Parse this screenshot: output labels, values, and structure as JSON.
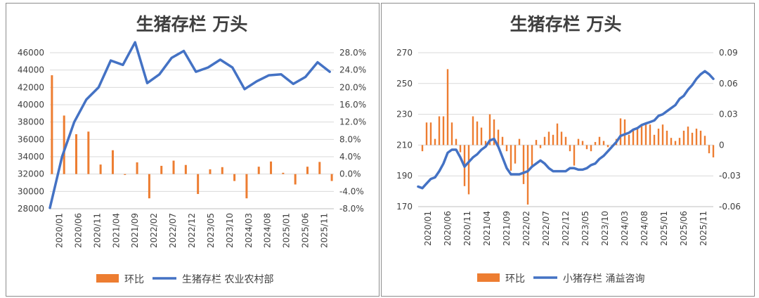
{
  "chart_data": [
    {
      "type": "bar+line",
      "title": "生猪存栏 万头",
      "y_left_ticks": [
        "46000",
        "44000",
        "42000",
        "40000",
        "38000",
        "36000",
        "34000",
        "32000",
        "30000",
        "28000"
      ],
      "y_right_ticks": [
        "28.0%",
        "24.0%",
        "20.0%",
        "16.0%",
        "12.0%",
        "8.0%",
        "4.0%",
        "0.0%",
        "-4.0%",
        "-8.0%"
      ],
      "ylim_left": [
        28000,
        46000
      ],
      "ylim_right": [
        -8,
        28
      ],
      "x_ticks": [
        "2020/01",
        "2020/06",
        "2020/11",
        "2021/04",
        "2021/09",
        "2022/02",
        "2022/07",
        "2022/12",
        "2023/05",
        "2023/10",
        "2024/03",
        "2024/08",
        "2025/01",
        "2025/06",
        "2025/11"
      ],
      "grid": true,
      "legend_position": "bottom",
      "legend": [
        "环比",
        "生猪存栏 农业农村部"
      ],
      "series": [
        {
          "name": "环比",
          "type": "bar",
          "axis": "right",
          "color": "#ED7D31",
          "x": [
            0.5,
            3.5,
            6.5,
            9.5,
            12.5,
            15.5,
            18.5,
            21.5,
            24.5,
            27.5,
            30.5,
            33.5,
            36.5,
            39.5,
            42.5,
            45.5,
            48.5,
            51.5,
            54.5,
            57.5,
            60.5,
            63.5,
            66.5,
            69.5
          ],
          "values": [
            22.8,
            13.5,
            9.2,
            9.8,
            2.2,
            5.5,
            -0.2,
            2.7,
            -5.6,
            1.9,
            3.1,
            2.1,
            -4.6,
            1.1,
            1.6,
            -1.6,
            -5.6,
            1.7,
            2.9,
            0.3,
            -2.4,
            1.7,
            2.8,
            -1.6
          ]
        },
        {
          "name": "生猪存栏 农业农村部",
          "type": "line",
          "axis": "left",
          "color": "#4472C4",
          "x": [
            0,
            3,
            6,
            9,
            12,
            15,
            18,
            21,
            24,
            27,
            30,
            33,
            36,
            39,
            42,
            45,
            48,
            51,
            54,
            57,
            60,
            63,
            66,
            69
          ],
          "values": [
            28100,
            34000,
            38000,
            40600,
            42000,
            45100,
            44600,
            47200,
            42500,
            43500,
            45400,
            46200,
            43800,
            44300,
            45200,
            44300,
            41800,
            42700,
            43400,
            43500,
            42400,
            43200,
            44900,
            43800
          ]
        }
      ]
    },
    {
      "type": "bar+line",
      "title": "生猪存栏 万头",
      "y_left_ticks": [
        "270",
        "250",
        "230",
        "210",
        "190",
        "170"
      ],
      "y_right_ticks": [
        "0.09",
        "0.06",
        "0.03",
        "0",
        "-0.03",
        "-0.06"
      ],
      "ylim_left": [
        170,
        270
      ],
      "ylim_right": [
        -0.06,
        0.09
      ],
      "x_ticks": [
        "2020/01",
        "2020/06",
        "2020/11",
        "2021/04",
        "2021/09",
        "2022/02",
        "2022/07",
        "2022/12",
        "2023/05",
        "2023/10",
        "2024/03",
        "2024/08",
        "2025/01",
        "2025/06",
        "2025/11"
      ],
      "grid": true,
      "legend_position": "bottom",
      "legend": [
        "环比",
        "小猪存栏 涌益咨询"
      ],
      "series": [
        {
          "name": "环比",
          "type": "bar",
          "axis": "right",
          "color": "#ED7D31",
          "x": [
            1,
            2,
            3,
            4,
            5,
            6,
            7,
            8,
            9,
            10,
            11,
            12,
            13,
            14,
            15,
            16,
            17,
            18,
            19,
            20,
            21,
            22,
            23,
            24,
            25,
            26,
            27,
            28,
            29,
            30,
            31,
            32,
            33,
            34,
            35,
            36,
            37,
            38,
            39,
            40,
            41,
            42,
            43,
            44,
            45,
            46,
            47,
            48,
            49,
            50,
            51,
            52,
            53,
            54,
            55,
            56,
            57,
            58,
            59,
            60,
            61,
            62,
            63,
            64,
            65,
            66,
            67,
            68,
            69,
            70
          ],
          "values": [
            -0.006,
            0.022,
            0.022,
            0.006,
            0.028,
            0.028,
            0.074,
            0.022,
            0.006,
            -0.007,
            -0.04,
            -0.048,
            0.028,
            0.023,
            0.017,
            0.004,
            0.03,
            0.025,
            0.015,
            0.008,
            -0.006,
            -0.025,
            -0.018,
            0.006,
            -0.038,
            -0.058,
            -0.022,
            0.005,
            -0.003,
            0.008,
            0.013,
            0.01,
            0.021,
            0.013,
            0.008,
            -0.006,
            -0.02,
            0.006,
            0.004,
            -0.004,
            -0.006,
            0.003,
            0.008,
            0.004,
            -0.002,
            -0.002,
            0.006,
            0.026,
            0.025,
            0.01,
            0.014,
            0.016,
            0.02,
            0.022,
            0.02,
            0.01,
            0.016,
            0.02,
            0.014,
            0.007,
            0.004,
            0.007,
            0.014,
            0.018,
            0.012,
            0.016,
            0.014,
            0.009,
            -0.008,
            -0.012
          ]
        },
        {
          "name": "小猪存栏 涌益咨询",
          "type": "line",
          "axis": "left",
          "color": "#4472C4",
          "x": [
            0,
            1,
            2,
            3,
            4,
            5,
            6,
            7,
            8,
            9,
            10,
            11,
            12,
            13,
            14,
            15,
            16,
            17,
            18,
            19,
            20,
            21,
            22,
            23,
            24,
            25,
            26,
            27,
            28,
            29,
            30,
            31,
            32,
            33,
            34,
            35,
            36,
            37,
            38,
            39,
            40,
            41,
            42,
            43,
            44,
            45,
            46,
            47,
            48,
            49,
            50,
            51,
            52,
            53,
            54,
            55,
            56,
            57,
            58,
            59,
            60,
            61,
            62,
            63,
            64,
            65,
            66,
            67,
            68,
            69,
            70
          ],
          "values": [
            183,
            182,
            185,
            188,
            189,
            193,
            198,
            205,
            207,
            207,
            202,
            196,
            199,
            202,
            204,
            207,
            209,
            213,
            214,
            209,
            202,
            195,
            191,
            191,
            191,
            192,
            193,
            196,
            198,
            200,
            198,
            195,
            193,
            193,
            193,
            193,
            195,
            195,
            194,
            194,
            195,
            197,
            198,
            201,
            203,
            206,
            209,
            212,
            216,
            217,
            218,
            220,
            221,
            223,
            224,
            225,
            226,
            229,
            230,
            232,
            234,
            236,
            240,
            242,
            246,
            249,
            253,
            256,
            258,
            256,
            253
          ]
        }
      ]
    }
  ]
}
